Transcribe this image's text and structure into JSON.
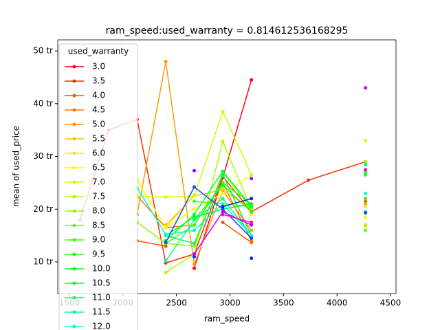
{
  "chart_data": {
    "type": "line",
    "title": "ram_speed:used_warranty = 0.814612536168295",
    "x_label": "ram_speed",
    "y_label": "mean of used_price",
    "legend_title": "used_warranty",
    "legend": "upper left",
    "x": [
      1600,
      1866,
      2133,
      2400,
      2666,
      2933,
      3200,
      3733,
      4266
    ],
    "xlim": [
      1391,
      4551
    ],
    "xticks": [
      1500,
      2000,
      2500,
      3000,
      3500,
      4000,
      4500
    ],
    "ylim": [
      4.0,
      52.1
    ],
    "yticks": [
      {
        "value": 10,
        "label": "10 tr"
      },
      {
        "value": 20,
        "label": "20 tr"
      },
      {
        "value": 30,
        "label": "30 tr"
      },
      {
        "value": 40,
        "label": "40 tr"
      },
      {
        "value": 50,
        "label": "50 tr"
      }
    ],
    "series": [
      {
        "name": "3.0",
        "color": "#ff0010",
        "values": [
          null,
          null,
          null,
          null,
          8.8,
          26,
          44.5,
          null,
          22
        ]
      },
      {
        "name": "3.5",
        "color": "#ff2a00",
        "values": [
          18,
          35,
          37,
          9.8,
          11.5,
          26.2,
          19.5,
          25.5,
          29
        ]
      },
      {
        "name": "4.0",
        "color": "#ff4f00",
        "values": [
          null,
          null,
          14,
          13,
          null,
          17.5,
          13.7,
          null,
          21.5
        ]
      },
      {
        "name": "4.5",
        "color": "#ff7400",
        "values": [
          null,
          null,
          22.5,
          16.5,
          17,
          25,
          14,
          null,
          22
        ]
      },
      {
        "name": "5.0",
        "color": "#ff9a00",
        "values": [
          null,
          null,
          19,
          48,
          9.6,
          23.5,
          16,
          null,
          21
        ]
      },
      {
        "name": "5.5",
        "color": "#ffbf00",
        "values": [
          null,
          null,
          null,
          17,
          22.5,
          23.7,
          20,
          null,
          17
        ]
      },
      {
        "name": "6.0",
        "color": "#ffe400",
        "values": [
          null,
          null,
          null,
          16.5,
          22.7,
          null,
          19,
          null,
          33
        ]
      },
      {
        "name": "6.5",
        "color": "#f4ff00",
        "values": [
          null,
          null,
          25.5,
          16.5,
          20,
          23,
          26.5,
          null,
          18.5
        ]
      },
      {
        "name": "7.0",
        "color": "#cfff00",
        "values": [
          null,
          null,
          22.5,
          22.3,
          22.5,
          38.5,
          26.5,
          null,
          20.5
        ]
      },
      {
        "name": "7.5",
        "color": "#aaff00",
        "values": [
          null,
          null,
          null,
          8,
          11.5,
          32.8,
          20,
          null,
          16.8
        ]
      },
      {
        "name": "8.0",
        "color": "#85ff00",
        "values": [
          null,
          null,
          17.5,
          13.5,
          13,
          27,
          20,
          null,
          29
        ]
      },
      {
        "name": "8.5",
        "color": "#5fff00",
        "values": [
          null,
          null,
          null,
          null,
          21.5,
          21,
          20.5,
          null,
          16
        ]
      },
      {
        "name": "9.0",
        "color": "#3aff00",
        "values": [
          null,
          null,
          null,
          13.5,
          17,
          25,
          21,
          null,
          22
        ]
      },
      {
        "name": "9.5",
        "color": "#15ff00",
        "values": [
          null,
          null,
          null,
          null,
          18,
          24.5,
          19.5,
          null,
          27
        ]
      },
      {
        "name": "10.0",
        "color": "#00ff10",
        "values": [
          null,
          null,
          null,
          15,
          18.5,
          20,
          21,
          null,
          null
        ]
      },
      {
        "name": "10.5",
        "color": "#00ff35",
        "values": [
          null,
          null,
          null,
          14,
          19,
          27.2,
          20.5,
          null,
          26.5
        ]
      },
      {
        "name": "11.0",
        "color": "#00ff5a",
        "values": [
          null,
          null,
          null,
          15,
          13.5,
          26.5,
          15,
          null,
          28.5
        ]
      },
      {
        "name": "11.5",
        "color": "#00ff95",
        "values": [
          null,
          null,
          null,
          10.2,
          18,
          22,
          15,
          null,
          19.5
        ]
      },
      {
        "name": "12.0",
        "color": "#00ffd0",
        "values": [
          null,
          null,
          24,
          15.2,
          16,
          21,
          15,
          null,
          23
        ]
      },
      {
        "color": "#0050ff",
        "values": [
          null,
          null,
          null,
          13.7,
          24.2,
          20,
          14.5,
          null,
          19.3
        ]
      },
      {
        "color": "#0a2aff",
        "values": [
          null,
          null,
          null,
          null,
          11,
          null,
          10.7,
          null,
          null
        ]
      },
      {
        "color": "#1a10e0",
        "values": [
          null,
          null,
          null,
          null,
          null,
          20.5,
          22,
          null,
          null
        ]
      },
      {
        "color": "#9a00ff",
        "values": [
          null,
          null,
          null,
          null,
          27.3,
          null,
          25.8,
          null,
          null
        ]
      },
      {
        "color": "#c000ff",
        "values": [
          null,
          null,
          null,
          null,
          11.5,
          19.5,
          17,
          null,
          43
        ]
      },
      {
        "color": "#ff00c0",
        "values": [
          null,
          null,
          null,
          null,
          null,
          19,
          17.5,
          null,
          27.5
        ]
      }
    ]
  }
}
